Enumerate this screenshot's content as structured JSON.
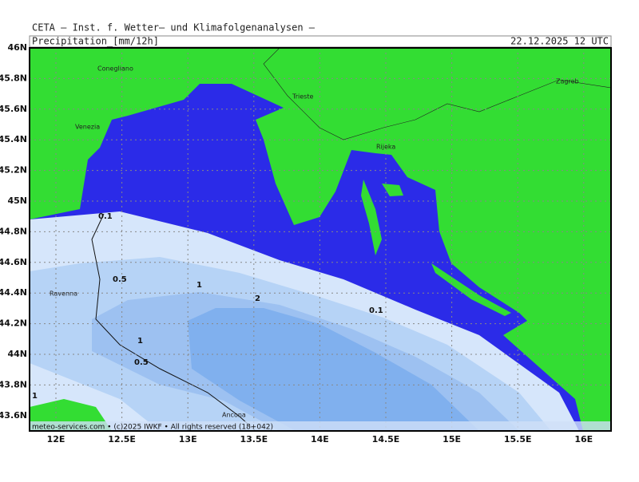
{
  "header": {
    "title": "CETA – Inst. f. Wetter– und Klimafolgenanalysen –",
    "variable": "Precipitation_[mm/12h]",
    "valid_time": "22.12.2025 12 UTC"
  },
  "map": {
    "lat_labels": [
      "46N",
      "45.8N",
      "45.6N",
      "45.4N",
      "45.2N",
      "45N",
      "44.8N",
      "44.6N",
      "44.4N",
      "44.2N",
      "44N",
      "43.8N",
      "43.6N"
    ],
    "lon_labels": [
      "12E",
      "12.5E",
      "13E",
      "13.5E",
      "14E",
      "14.5E",
      "15E",
      "15.5E",
      "16E"
    ],
    "places": [
      "Conegliano",
      "Venezia",
      "Trieste",
      "Zagreb",
      "Rijeka",
      "Ravenna",
      "Ancona"
    ],
    "contour_labels": [
      0.1,
      0.5,
      1,
      2,
      0.1,
      1,
      0.5,
      1
    ]
  },
  "footer": "meteo-services.com • (c)2025 IWKF • All rights reserved (18+042)"
}
